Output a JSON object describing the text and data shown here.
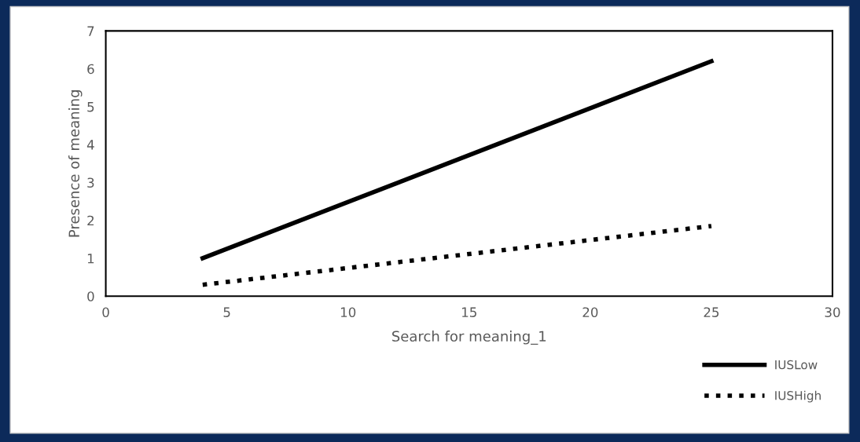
{
  "chart_data": {
    "type": "line",
    "xlabel": "Search for meaning_1",
    "ylabel": "Presence of meaning",
    "x": [
      4,
      25
    ],
    "series": [
      {
        "name": "IUSLow",
        "color": "#000000",
        "values": [
          1.0,
          6.2
        ],
        "line_style": "solid"
      },
      {
        "name": "IUSHigh",
        "color": "#000000",
        "values": [
          0.3,
          1.85
        ],
        "line_style": "dotted"
      }
    ],
    "xlim": [
      0,
      30
    ],
    "xticks": [
      0,
      5,
      10,
      15,
      20,
      25,
      30
    ],
    "ylim": [
      0,
      7
    ],
    "yticks": [
      0,
      1,
      2,
      3,
      4,
      5,
      6,
      7
    ],
    "grid": false,
    "legend": "bottom right",
    "marker": "none"
  }
}
